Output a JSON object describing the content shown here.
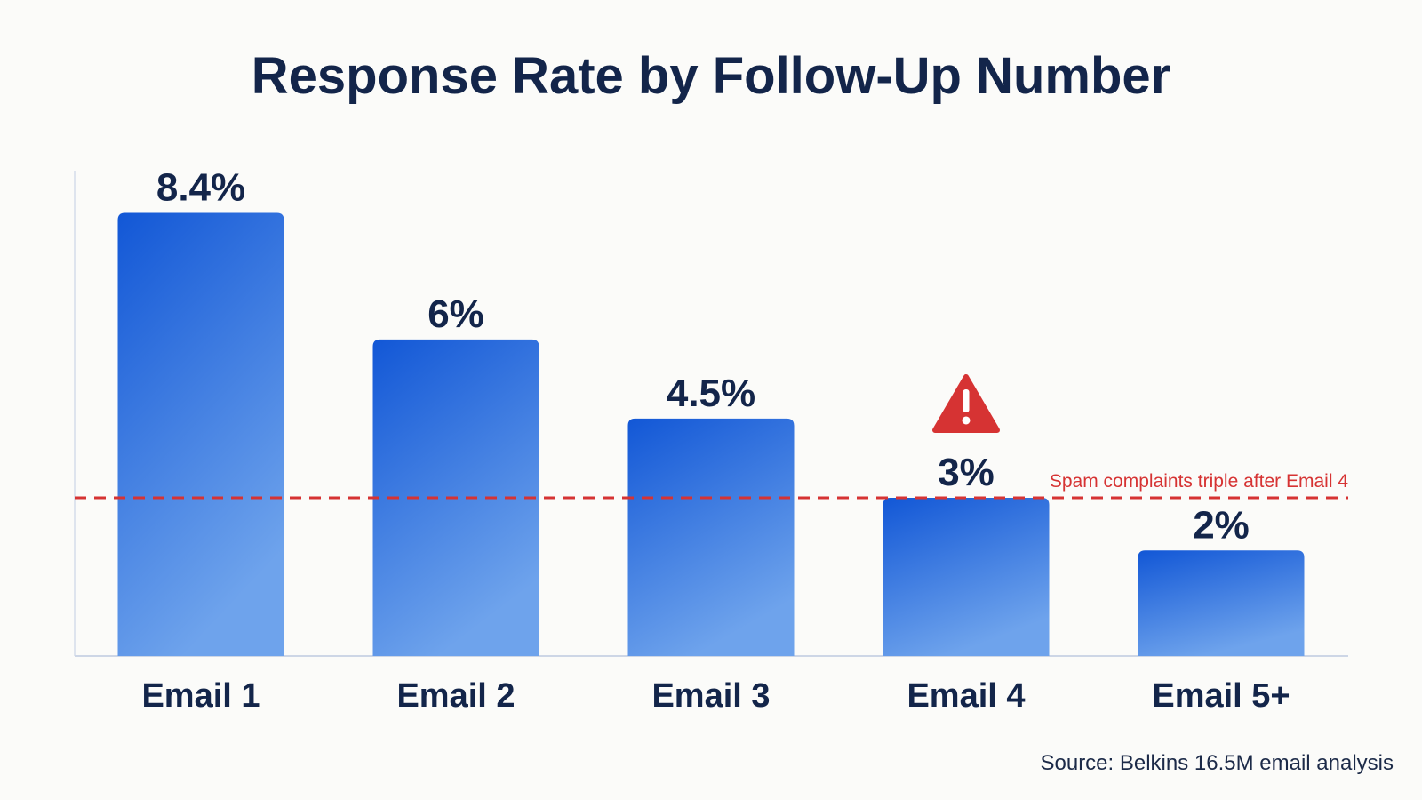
{
  "chart_data": {
    "type": "bar",
    "title": "Response Rate by Follow-Up Number",
    "categories": [
      "Email 1",
      "Email 2",
      "Email 3",
      "Email 4",
      "Email 5+"
    ],
    "values": [
      8.4,
      6,
      4.5,
      3,
      2
    ],
    "data_labels": [
      "8.4%",
      "6%",
      "4.5%",
      "3%",
      "2%"
    ],
    "ylim": [
      0,
      9.2
    ],
    "grid": false,
    "reference_line": {
      "value": 3,
      "label": "Spam complaints triple after Email 4",
      "color": "#d63333",
      "style": "dashed"
    },
    "warning_icon": {
      "name": "warning-triangle-icon",
      "category": "Email 4",
      "color": "#d63333"
    },
    "bar_color_top": "#1257d6",
    "bar_color_bottom": "#6ea3ec",
    "text_color": "#13254a",
    "source": "Source: Belkins 16.5M email analysis"
  }
}
